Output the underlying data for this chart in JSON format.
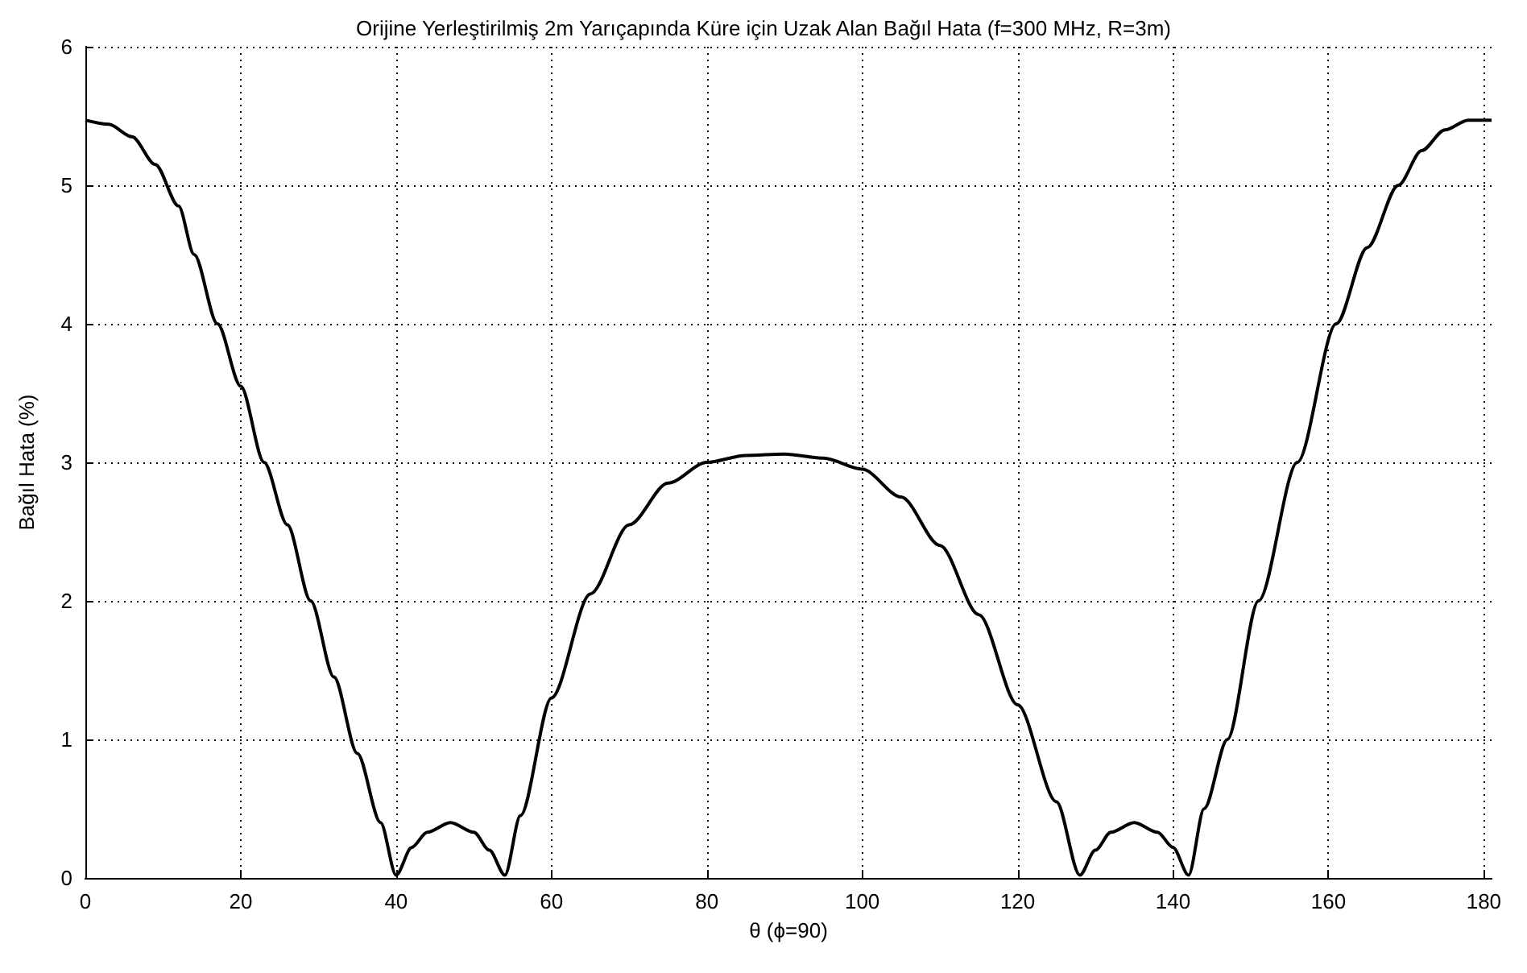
{
  "chart_data": {
    "type": "line",
    "title": "Orijine Yerleştirilmiş 2m Yarıçapında Küre için Uzak Alan Bağıl Hata (f=300 MHz, R=3m)",
    "xlabel": "θ (ϕ=90)",
    "ylabel": "Bağıl Hata (%)",
    "series": [
      {
        "color": "#000000",
        "x": [
          0,
          3,
          6,
          9,
          12,
          14,
          17,
          20,
          23,
          26,
          29,
          32,
          35,
          38,
          40,
          42,
          44,
          47,
          50,
          52,
          54,
          56,
          60,
          65,
          70,
          75,
          80,
          85,
          90,
          95,
          100,
          105,
          110,
          115,
          120,
          125,
          128,
          130,
          132,
          135,
          138,
          140,
          142,
          144,
          147,
          151,
          156,
          161,
          165,
          169,
          172,
          175,
          178,
          181
        ],
        "values": [
          5.47,
          5.44,
          5.35,
          5.15,
          4.85,
          4.5,
          4.0,
          3.55,
          3.0,
          2.55,
          2.0,
          1.45,
          0.9,
          0.4,
          0.02,
          0.22,
          0.33,
          0.4,
          0.33,
          0.2,
          0.02,
          0.45,
          1.3,
          2.05,
          2.55,
          2.85,
          3.0,
          3.05,
          3.06,
          3.03,
          2.95,
          2.75,
          2.4,
          1.9,
          1.25,
          0.55,
          0.02,
          0.2,
          0.33,
          0.4,
          0.33,
          0.22,
          0.02,
          0.5,
          1.0,
          2.0,
          3.0,
          4.0,
          4.55,
          5.0,
          5.25,
          5.4,
          5.47,
          5.47
        ]
      }
    ],
    "xlim": [
      0,
      181
    ],
    "xticks": [
      0,
      20,
      40,
      60,
      80,
      100,
      120,
      140,
      160,
      180
    ],
    "ylim": [
      0,
      6
    ],
    "yticks": [
      0,
      1,
      2,
      3,
      4,
      5,
      6
    ],
    "grid": true,
    "marker": "none",
    "line_style": "solid"
  }
}
